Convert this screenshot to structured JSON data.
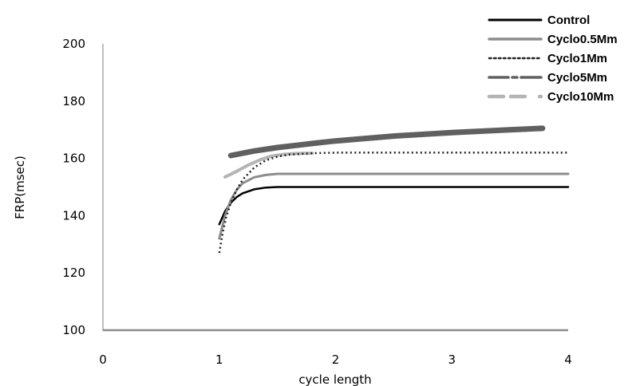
{
  "chart_data": {
    "type": "line",
    "title": "",
    "xlabel": "cycle length",
    "ylabel": "FRP(msec)",
    "xlim": [
      0,
      4
    ],
    "ylim": [
      100,
      200
    ],
    "x_ticks": [
      0,
      1,
      2,
      3,
      4
    ],
    "y_ticks": [
      100,
      120,
      140,
      160,
      180,
      200
    ],
    "grid": false,
    "legend_position": "top-right",
    "series": [
      {
        "name": "Control",
        "style": "solid",
        "color": "#000000",
        "x": [
          1.0,
          1.05,
          1.1,
          1.15,
          1.2,
          1.3,
          1.4,
          1.5,
          2.0,
          3.0,
          4.0
        ],
        "y": [
          137,
          141.5,
          144.5,
          146.5,
          147.8,
          149.2,
          149.8,
          150,
          150,
          150,
          150
        ]
      },
      {
        "name": "Cyclo0.5Mm",
        "style": "solid",
        "color": "#8c8c8c",
        "x": [
          1.0,
          1.05,
          1.1,
          1.15,
          1.2,
          1.3,
          1.4,
          1.5,
          2.0,
          3.0,
          4.0
        ],
        "y": [
          132,
          140,
          145.5,
          149,
          151.3,
          153.4,
          154.2,
          154.6,
          154.6,
          154.6,
          154.6
        ]
      },
      {
        "name": "Cyclo1Mm",
        "style": "dotted",
        "color": "#222222",
        "x": [
          1.0,
          1.03,
          1.06,
          1.1,
          1.15,
          1.2,
          1.3,
          1.4,
          1.5,
          1.6,
          1.8,
          2.0,
          3.0,
          4.0
        ],
        "y": [
          127,
          134,
          139.5,
          144.5,
          149,
          152.5,
          156.8,
          159.3,
          160.6,
          161.3,
          161.8,
          162,
          162,
          162
        ]
      },
      {
        "name": "Cyclo5Mm",
        "style": "dashed",
        "color": "#606060",
        "x": [
          1.1,
          1.3,
          1.5,
          1.8,
          2.0,
          2.5,
          3.0,
          3.5,
          3.78
        ],
        "y": [
          161,
          162.6,
          163.8,
          165.2,
          166.1,
          167.8,
          169,
          170,
          170.5
        ]
      },
      {
        "name": "Cyclo10Mm",
        "style": "dashed",
        "color": "#b4b4b4",
        "x": [
          1.05,
          1.15,
          1.25,
          1.35,
          1.45,
          1.55,
          1.65,
          1.8
        ],
        "y": [
          153.5,
          155.5,
          157.7,
          159.5,
          160.8,
          161.4,
          161.7,
          161.8
        ]
      }
    ]
  }
}
